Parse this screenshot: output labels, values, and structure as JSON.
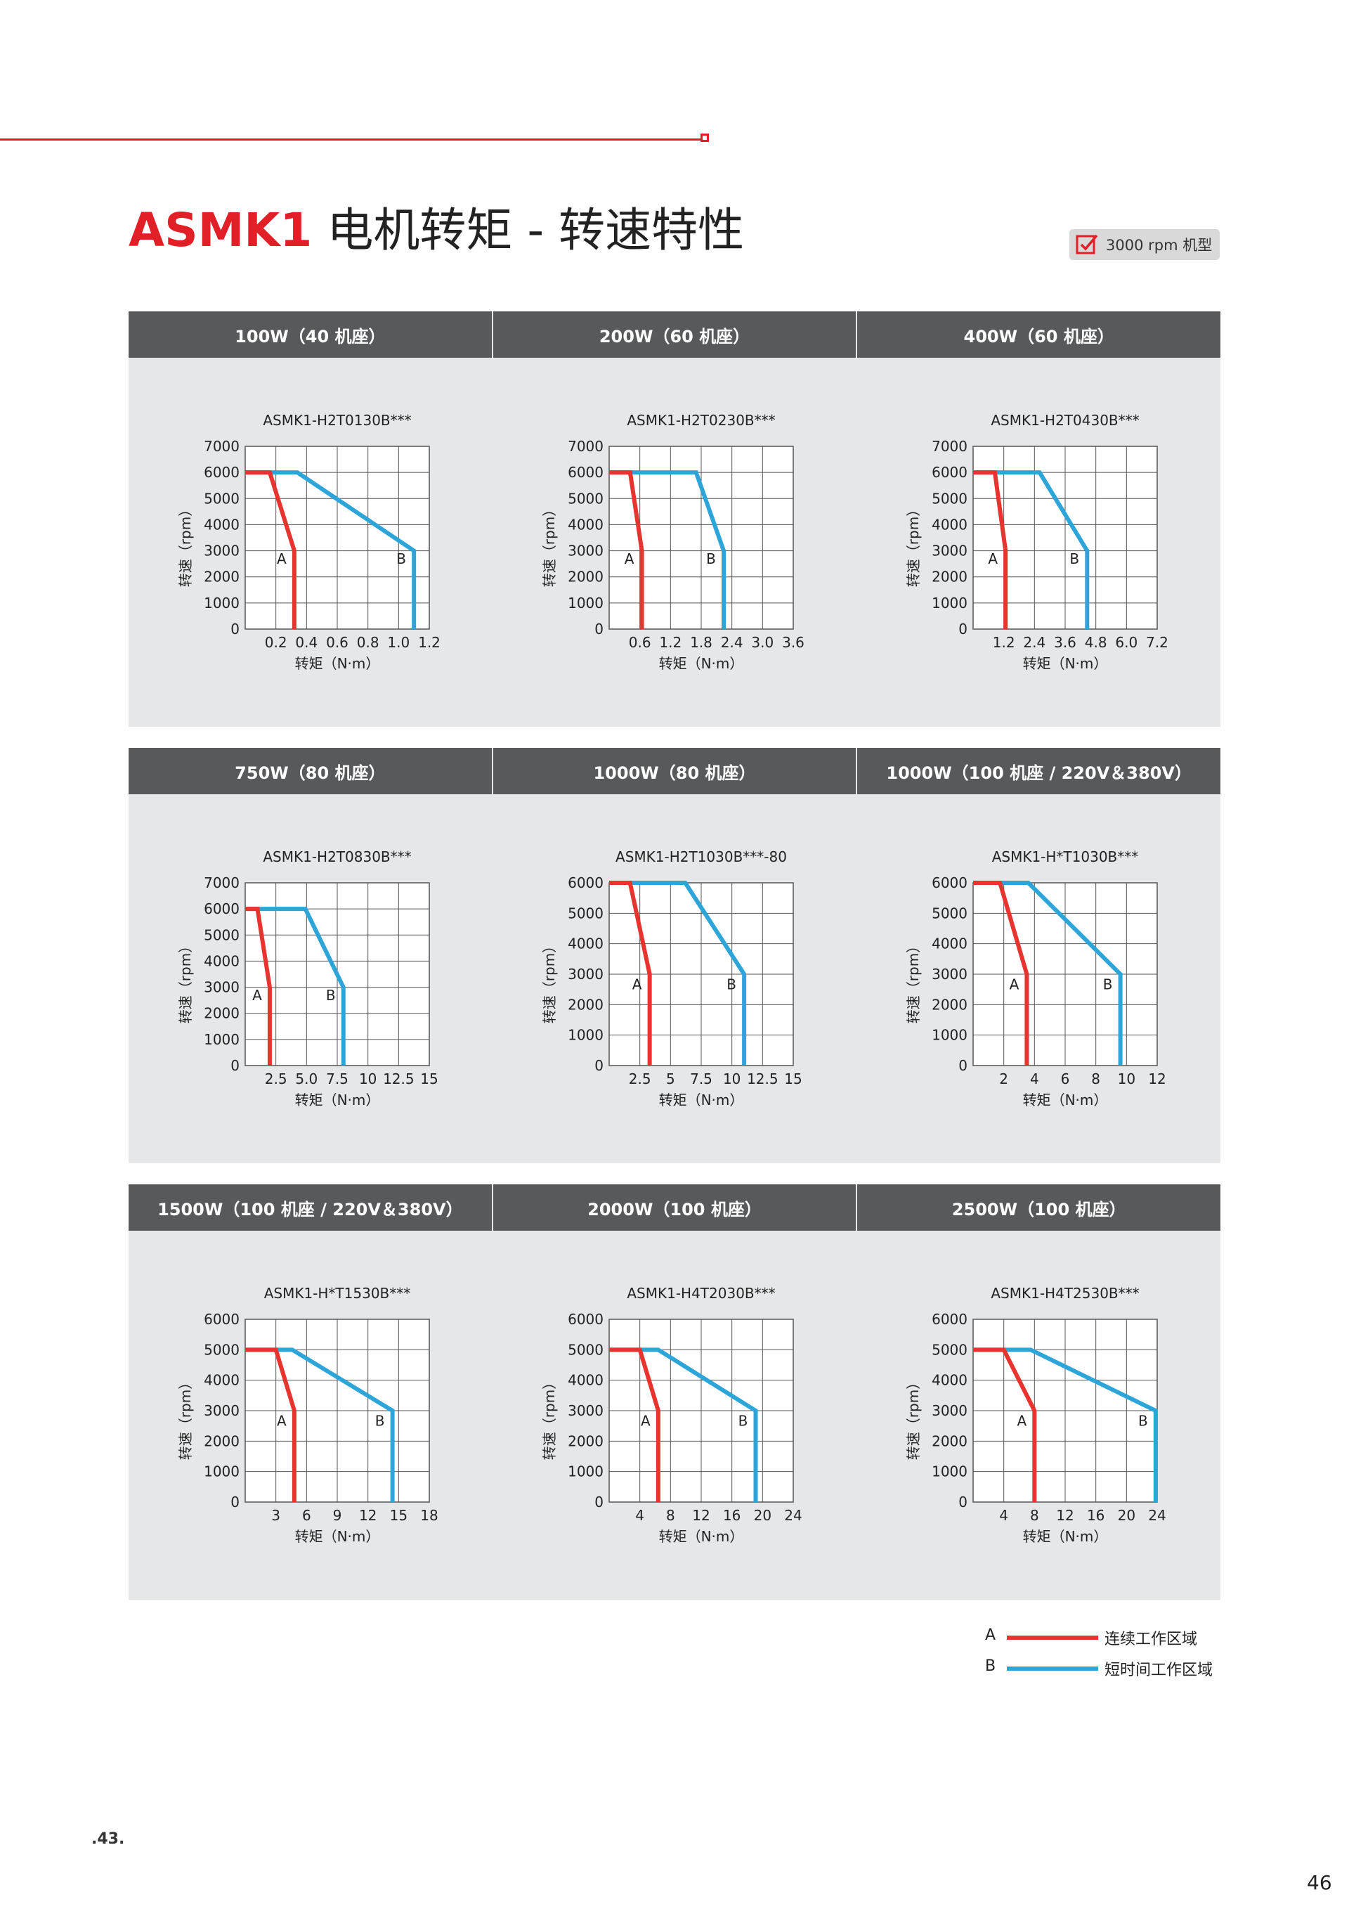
{
  "page": {
    "title_brand": "ASMK1",
    "title_rest": "电机转矩 - 转速特性",
    "badge": "3000 rpm 机型",
    "footer_left": ".43.",
    "footer_right": "46",
    "accent": "#e21f26",
    "header_color": "#58595b",
    "panel_color": "#e6e7e8"
  },
  "legend": [
    {
      "label": "A",
      "text": "连续工作区域",
      "color": "#e8342e",
      "icon": "red-line"
    },
    {
      "label": "B",
      "text": "短时间工作区域",
      "color": "#2ea5d8",
      "icon": "blue-line"
    }
  ],
  "headers": [
    "100W（40 机座）",
    "200W（60 机座）",
    "400W（60 机座）",
    "750W（80 机座）",
    "1000W（80 机座）",
    "1000W（100 机座 / 220V＆380V）",
    "1500W（100 机座 / 220V＆380V）",
    "2000W（100 机座）",
    "2500W（100 机座）"
  ],
  "chart_data": [
    {
      "type": "line",
      "title": "ASMK1-H2T0130B***",
      "xlabel": "转矩（N·m）",
      "ylabel": "转速（rpm）",
      "xlim": [
        0,
        1.2
      ],
      "xticks": [
        0.2,
        0.4,
        0.6,
        0.8,
        1.0,
        1.2
      ],
      "xtick_labels": [
        "0.2",
        "0.4",
        "0.6",
        "0.8",
        "1.0",
        "1.2"
      ],
      "ylim": [
        0,
        7000
      ],
      "yticks": [
        0,
        1000,
        2000,
        3000,
        4000,
        5000,
        6000,
        7000
      ],
      "grid": true,
      "series": [
        {
          "name": "A",
          "x": [
            0,
            0.16,
            0.32,
            0.32
          ],
          "y": [
            6000,
            6000,
            3000,
            0
          ]
        },
        {
          "name": "B",
          "x": [
            0,
            0.34,
            1.1,
            1.1
          ],
          "y": [
            6000,
            6000,
            3000,
            0
          ]
        }
      ]
    },
    {
      "type": "line",
      "title": "ASMK1-H2T0230B***",
      "xlabel": "转矩（N·m）",
      "ylabel": "转速（rpm）",
      "xlim": [
        0,
        3.6
      ],
      "xticks": [
        0.6,
        1.2,
        1.8,
        2.4,
        3.0,
        3.6
      ],
      "xtick_labels": [
        "0.6",
        "1.2",
        "1.8",
        "2.4",
        "3.0",
        "3.6"
      ],
      "ylim": [
        0,
        7000
      ],
      "yticks": [
        0,
        1000,
        2000,
        3000,
        4000,
        5000,
        6000,
        7000
      ],
      "grid": true,
      "series": [
        {
          "name": "A",
          "x": [
            0,
            0.41,
            0.64,
            0.64
          ],
          "y": [
            6000,
            6000,
            3000,
            0
          ]
        },
        {
          "name": "B",
          "x": [
            0,
            1.7,
            2.24,
            2.24
          ],
          "y": [
            6000,
            6000,
            3000,
            0
          ]
        }
      ]
    },
    {
      "type": "line",
      "title": "ASMK1-H2T0430B***",
      "xlabel": "转矩（N·m）",
      "ylabel": "转速（rpm）",
      "xlim": [
        0,
        7.2
      ],
      "xticks": [
        1.2,
        2.4,
        3.6,
        4.8,
        6.0,
        7.2
      ],
      "xtick_labels": [
        "1.2",
        "2.4",
        "3.6",
        "4.8",
        "6.0",
        "7.2"
      ],
      "ylim": [
        0,
        7000
      ],
      "yticks": [
        0,
        1000,
        2000,
        3000,
        4000,
        5000,
        6000,
        7000
      ],
      "grid": true,
      "series": [
        {
          "name": "A",
          "x": [
            0,
            0.85,
            1.27,
            1.27
          ],
          "y": [
            6000,
            6000,
            3000,
            0
          ]
        },
        {
          "name": "B",
          "x": [
            0,
            2.6,
            4.46,
            4.46
          ],
          "y": [
            6000,
            6000,
            3000,
            0
          ]
        }
      ]
    },
    {
      "type": "line",
      "title": "ASMK1-H2T0830B***",
      "xlabel": "转矩（N·m）",
      "ylabel": "转速（rpm）",
      "xlim": [
        0,
        15
      ],
      "xticks": [
        2.5,
        5.0,
        7.5,
        10,
        12.5,
        15
      ],
      "xtick_labels": [
        "2.5",
        "5.0",
        "7.5",
        "10",
        "12.5",
        "15"
      ],
      "ylim": [
        0,
        7000
      ],
      "yticks": [
        0,
        1000,
        2000,
        3000,
        4000,
        5000,
        6000,
        7000
      ],
      "grid": true,
      "series": [
        {
          "name": "A",
          "x": [
            0,
            1.0,
            2.0,
            2.0
          ],
          "y": [
            6000,
            6000,
            3000,
            0
          ]
        },
        {
          "name": "B",
          "x": [
            0,
            4.9,
            8.0,
            8.0
          ],
          "y": [
            6000,
            6000,
            3000,
            0
          ]
        }
      ]
    },
    {
      "type": "line",
      "title": "ASMK1-H2T1030B***-80",
      "xlabel": "转矩（N·m）",
      "ylabel": "转速（rpm）",
      "xlim": [
        0,
        15
      ],
      "xticks": [
        2.5,
        5,
        7.5,
        10,
        12.5,
        15
      ],
      "xtick_labels": [
        "2.5",
        "5",
        "7.5",
        "10",
        "12.5",
        "15"
      ],
      "ylim": [
        0,
        6000
      ],
      "yticks": [
        0,
        1000,
        2000,
        3000,
        4000,
        5000,
        6000
      ],
      "grid": true,
      "series": [
        {
          "name": "A",
          "x": [
            0,
            1.7,
            3.3,
            3.3
          ],
          "y": [
            6000,
            6000,
            3000,
            0
          ]
        },
        {
          "name": "B",
          "x": [
            0,
            6.2,
            11.0,
            11.0
          ],
          "y": [
            6000,
            6000,
            3000,
            0
          ]
        }
      ]
    },
    {
      "type": "line",
      "title": "ASMK1-H*T1030B***",
      "xlabel": "转矩（N·m）",
      "ylabel": "转速（rpm）",
      "xlim": [
        0,
        12
      ],
      "xticks": [
        2,
        4,
        6,
        8,
        10,
        12
      ],
      "xtick_labels": [
        "2",
        "4",
        "6",
        "8",
        "10",
        "12"
      ],
      "ylim": [
        0,
        6000
      ],
      "yticks": [
        0,
        1000,
        2000,
        3000,
        4000,
        5000,
        6000
      ],
      "grid": true,
      "series": [
        {
          "name": "A",
          "x": [
            0,
            1.75,
            3.5,
            3.5
          ],
          "y": [
            6000,
            6000,
            3000,
            0
          ]
        },
        {
          "name": "B",
          "x": [
            0,
            3.6,
            9.6,
            9.6
          ],
          "y": [
            6000,
            6000,
            3000,
            0
          ]
        }
      ]
    },
    {
      "type": "line",
      "title": "ASMK1-H*T1530B***",
      "xlabel": "转矩（N·m）",
      "ylabel": "转速（rpm）",
      "xlim": [
        0,
        18
      ],
      "xticks": [
        3,
        6,
        9,
        12,
        15,
        18
      ],
      "xtick_labels": [
        "3",
        "6",
        "9",
        "12",
        "15",
        "18"
      ],
      "ylim": [
        0,
        6000
      ],
      "yticks": [
        0,
        1000,
        2000,
        3000,
        4000,
        5000,
        6000
      ],
      "grid": true,
      "series": [
        {
          "name": "A",
          "x": [
            0,
            3.0,
            4.8,
            4.8
          ],
          "y": [
            5000,
            5000,
            3000,
            0
          ]
        },
        {
          "name": "B",
          "x": [
            0,
            4.6,
            14.4,
            14.4
          ],
          "y": [
            5000,
            5000,
            3000,
            0
          ]
        }
      ]
    },
    {
      "type": "line",
      "title": "ASMK1-H4T2030B***",
      "xlabel": "转矩（N·m）",
      "ylabel": "转速（rpm）",
      "xlim": [
        0,
        24
      ],
      "xticks": [
        4,
        8,
        12,
        16,
        20,
        24
      ],
      "xtick_labels": [
        "4",
        "8",
        "12",
        "16",
        "20",
        "24"
      ],
      "ylim": [
        0,
        6000
      ],
      "yticks": [
        0,
        1000,
        2000,
        3000,
        4000,
        5000,
        6000
      ],
      "grid": true,
      "series": [
        {
          "name": "A",
          "x": [
            0,
            4.0,
            6.4,
            6.4
          ],
          "y": [
            5000,
            5000,
            3000,
            0
          ]
        },
        {
          "name": "B",
          "x": [
            0,
            6.4,
            19.1,
            19.1
          ],
          "y": [
            5000,
            5000,
            3000,
            0
          ]
        }
      ]
    },
    {
      "type": "line",
      "title": "ASMK1-H4T2530B***",
      "xlabel": "转矩（N·m）",
      "ylabel": "转速（rpm）",
      "xlim": [
        0,
        24
      ],
      "xticks": [
        4,
        8,
        12,
        16,
        20,
        24
      ],
      "xtick_labels": [
        "4",
        "8",
        "12",
        "16",
        "20",
        "24"
      ],
      "ylim": [
        0,
        6000
      ],
      "yticks": [
        0,
        1000,
        2000,
        3000,
        4000,
        5000,
        6000
      ],
      "grid": true,
      "series": [
        {
          "name": "A",
          "x": [
            0,
            4.0,
            8.0,
            8.0
          ],
          "y": [
            5000,
            5000,
            3000,
            0
          ]
        },
        {
          "name": "B",
          "x": [
            0,
            7.5,
            23.8,
            23.8
          ],
          "y": [
            5000,
            5000,
            3000,
            0
          ]
        }
      ]
    }
  ]
}
